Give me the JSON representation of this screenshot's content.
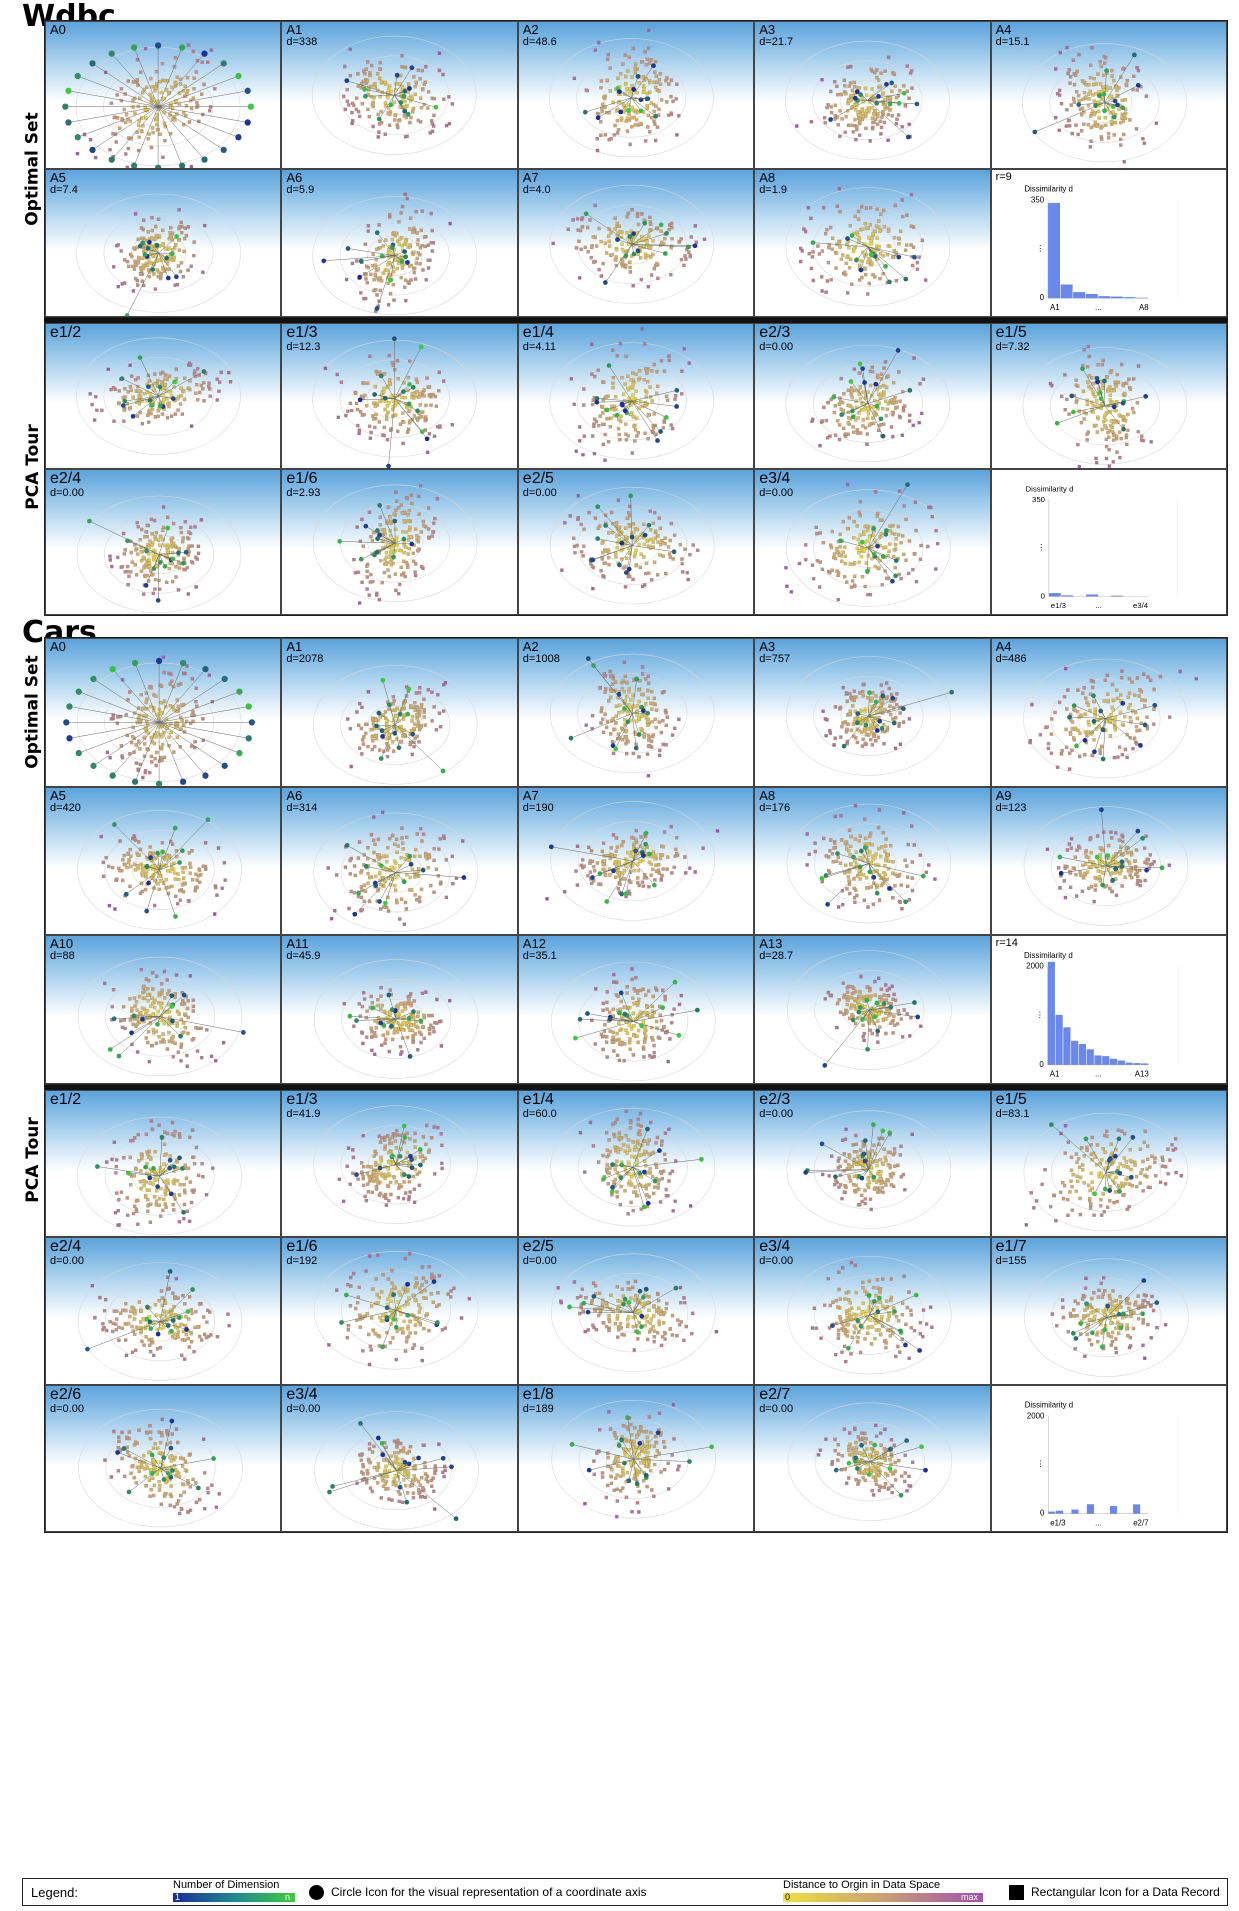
{
  "sections": [
    {
      "title": "Wdbc",
      "groups": [
        {
          "label": "Optimal Set",
          "panels": [
            {
              "label": "A0",
              "d": ""
            },
            {
              "label": "A1",
              "d": "d=338"
            },
            {
              "label": "A2",
              "d": "d=48.6"
            },
            {
              "label": "A3",
              "d": "d=21.7"
            },
            {
              "label": "A4",
              "d": "d=15.1"
            },
            {
              "label": "A5",
              "d": "d=7.4"
            },
            {
              "label": "A6",
              "d": "d=5.9"
            },
            {
              "label": "A7",
              "d": "d=4.0"
            },
            {
              "label": "A8",
              "d": "d=1.9"
            }
          ],
          "hist": {
            "r_label": "r=9",
            "title": "Dissimilarity d",
            "ymax_label": "350",
            "ymin_label": "0",
            "x_first": "A1",
            "x_dots": "...",
            "x_last": "A8",
            "ymax": 350,
            "values": [
              338,
              48.6,
              21.7,
              15.1,
              7.4,
              5.9,
              4.0,
              1.9
            ]
          }
        },
        {
          "label": "PCA Tour",
          "panels": [
            {
              "label": "e1/2",
              "d": ""
            },
            {
              "label": "e1/3",
              "d": "d=12.3"
            },
            {
              "label": "e1/4",
              "d": "d=4.11"
            },
            {
              "label": "e2/3",
              "d": "d=0.00"
            },
            {
              "label": "e1/5",
              "d": "d=7.32"
            },
            {
              "label": "e2/4",
              "d": "d=0.00"
            },
            {
              "label": "e1/6",
              "d": "d=2.93"
            },
            {
              "label": "e2/5",
              "d": "d=0.00"
            },
            {
              "label": "e3/4",
              "d": "d=0.00"
            }
          ],
          "hist": {
            "r_label": "",
            "title": "Dissimilarity d",
            "ymax_label": "350",
            "ymin_label": "0",
            "x_first": "e1/3",
            "x_dots": "...",
            "x_last": "e3/4",
            "ymax": 350,
            "values": [
              12.3,
              4.11,
              0,
              7.32,
              0,
              2.93,
              0,
              0
            ]
          }
        }
      ]
    },
    {
      "title": "Cars",
      "groups": [
        {
          "label": "Optimal Set",
          "panels": [
            {
              "label": "A0",
              "d": ""
            },
            {
              "label": "A1",
              "d": "d=2078"
            },
            {
              "label": "A2",
              "d": "d=1008"
            },
            {
              "label": "A3",
              "d": "d=757"
            },
            {
              "label": "A4",
              "d": "d=486"
            },
            {
              "label": "A5",
              "d": "d=420"
            },
            {
              "label": "A6",
              "d": "d=314"
            },
            {
              "label": "A7",
              "d": "d=190"
            },
            {
              "label": "A8",
              "d": "d=176"
            },
            {
              "label": "A9",
              "d": "d=123"
            },
            {
              "label": "A10",
              "d": "d=88"
            },
            {
              "label": "A11",
              "d": "d=45.9"
            },
            {
              "label": "A12",
              "d": "d=35.1"
            },
            {
              "label": "A13",
              "d": "d=28.7"
            }
          ],
          "hist": {
            "r_label": "r=14",
            "title": "Dissimilarity d",
            "ymax_label": "2000",
            "ymin_label": "0",
            "x_first": "A1",
            "x_dots": "...",
            "x_last": "A13",
            "ymax": 2000,
            "values": [
              2078,
              1008,
              757,
              486,
              420,
              314,
              190,
              176,
              123,
              88,
              45.9,
              35.1,
              28.7
            ]
          }
        },
        {
          "label": "PCA Tour",
          "panels": [
            {
              "label": "e1/2",
              "d": ""
            },
            {
              "label": "e1/3",
              "d": "d=41.9"
            },
            {
              "label": "e1/4",
              "d": "d=60.0"
            },
            {
              "label": "e2/3",
              "d": "d=0.00"
            },
            {
              "label": "e1/5",
              "d": "d=83.1"
            },
            {
              "label": "e2/4",
              "d": "d=0.00"
            },
            {
              "label": "e1/6",
              "d": "d=192"
            },
            {
              "label": "e2/5",
              "d": "d=0.00"
            },
            {
              "label": "e3/4",
              "d": "d=0.00"
            },
            {
              "label": "e1/7",
              "d": "d=155"
            },
            {
              "label": "e2/6",
              "d": "d=0.00"
            },
            {
              "label": "e3/4",
              "d": "d=0.00"
            },
            {
              "label": "e1/8",
              "d": "d=189"
            },
            {
              "label": "e2/7",
              "d": "d=0.00"
            }
          ],
          "hist": {
            "r_label": "",
            "title": "Dissimilarity d",
            "ymax_label": "2000",
            "ymin_label": "0",
            "x_first": "e1/3",
            "x_dots": "...",
            "x_last": "e2/7",
            "ymax": 2000,
            "values": [
              41.9,
              60.0,
              0,
              83.1,
              0,
              192,
              0,
              0,
              155,
              0,
              0,
              189,
              0
            ]
          }
        }
      ]
    }
  ],
  "legend": {
    "title": "Legend:",
    "dimension_label": "Number of Dimension",
    "dimension_min": "1",
    "dimension_max": "n",
    "circle_label": "Circle Icon for the visual representation of a coordinate axis",
    "distance_label": "Distance to Orgin in Data Space",
    "distance_min": "0",
    "distance_max": "max",
    "rect_label": "Rectangular Icon for a Data Record"
  },
  "colors": {
    "axis_low": "#1a2a9c",
    "axis_high": "#3ccc3c",
    "record_low": "#f0e040",
    "record_high": "#a050b0",
    "hist_bar": "#6a88ec"
  }
}
